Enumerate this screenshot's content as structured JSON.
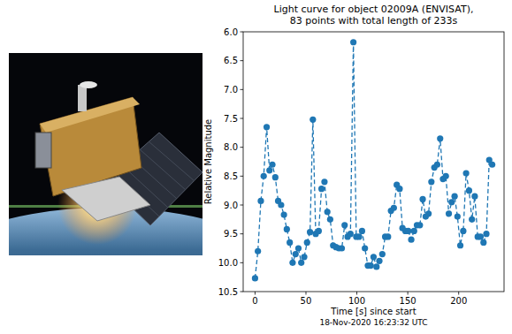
{
  "chart_data": {
    "type": "line",
    "title": "Light curve for object 02009A (ENVISAT),\n83 points with total length of 233s",
    "x_label": "Time [s] since start\n18-Nov-2020 16:23:32 UTC",
    "y_label": "Relative Magnitude",
    "x": [
      0,
      2.8,
      5.7,
      8.5,
      11.4,
      14.2,
      17,
      19.9,
      22.7,
      25.6,
      28.4,
      31.2,
      34.1,
      36.9,
      39.8,
      42.6,
      45.4,
      48.3,
      51.1,
      54,
      56.8,
      59.6,
      62.5,
      65.3,
      68.2,
      71,
      73.8,
      76.7,
      79.5,
      82.4,
      85.2,
      88,
      90.9,
      93.7,
      96.6,
      99.4,
      102.2,
      105.1,
      107.9,
      110.8,
      113.6,
      116.4,
      119.3,
      122.1,
      125,
      127.8,
      130.6,
      133.5,
      136.3,
      139.2,
      142,
      144.8,
      147.7,
      150.5,
      153.4,
      156.2,
      159,
      161.9,
      164.7,
      167.6,
      170.4,
      173.2,
      176.1,
      178.9,
      181.8,
      184.6,
      187.4,
      190.3,
      193.1,
      196,
      198.8,
      201.6,
      204.5,
      207.3,
      210.2,
      213,
      215.8,
      218.7,
      221.5,
      224.4,
      227.2,
      230,
      232.9
    ],
    "values": [
      10.27,
      9.8,
      8.93,
      8.5,
      7.65,
      8.4,
      8.3,
      8.52,
      8.93,
      9.0,
      9.17,
      9.42,
      9.65,
      10.0,
      9.85,
      9.75,
      10.0,
      9.9,
      9.65,
      9.47,
      7.52,
      9.5,
      9.45,
      8.72,
      8.6,
      9.12,
      9.25,
      9.7,
      9.73,
      9.75,
      9.75,
      9.35,
      9.55,
      9.5,
      6.18,
      9.55,
      9.55,
      9.45,
      9.75,
      10.05,
      10.05,
      9.9,
      10.07,
      9.97,
      9.85,
      9.55,
      9.55,
      9.1,
      9.05,
      8.65,
      8.72,
      9.4,
      9.45,
      9.45,
      9.6,
      9.45,
      9.35,
      9.35,
      8.9,
      9.2,
      9.15,
      8.6,
      8.35,
      8.3,
      7.85,
      8.55,
      8.5,
      9.15,
      8.95,
      8.85,
      9.2,
      9.7,
      9.45,
      8.45,
      8.75,
      9.25,
      8.85,
      9.55,
      9.55,
      9.65,
      9.5,
      8.22,
      8.3
    ],
    "color": "#1f77b4",
    "marker": "circle",
    "line_style": "dashed",
    "xlim": [
      -11.65,
      244.55
    ],
    "ylim": [
      10.5,
      6.0
    ],
    "xticks": [
      0,
      50,
      100,
      150,
      200
    ],
    "yticks": [
      {
        "value": 6,
        "label": "6.0"
      },
      6.5,
      {
        "value": 7,
        "label": "7.0"
      },
      7.5,
      {
        "value": 8,
        "label": "8.0"
      },
      8.5,
      {
        "value": 9,
        "label": "9.0"
      },
      9.5,
      {
        "value": 10,
        "label": "10.0"
      },
      10.5
    ],
    "grid": false
  }
}
